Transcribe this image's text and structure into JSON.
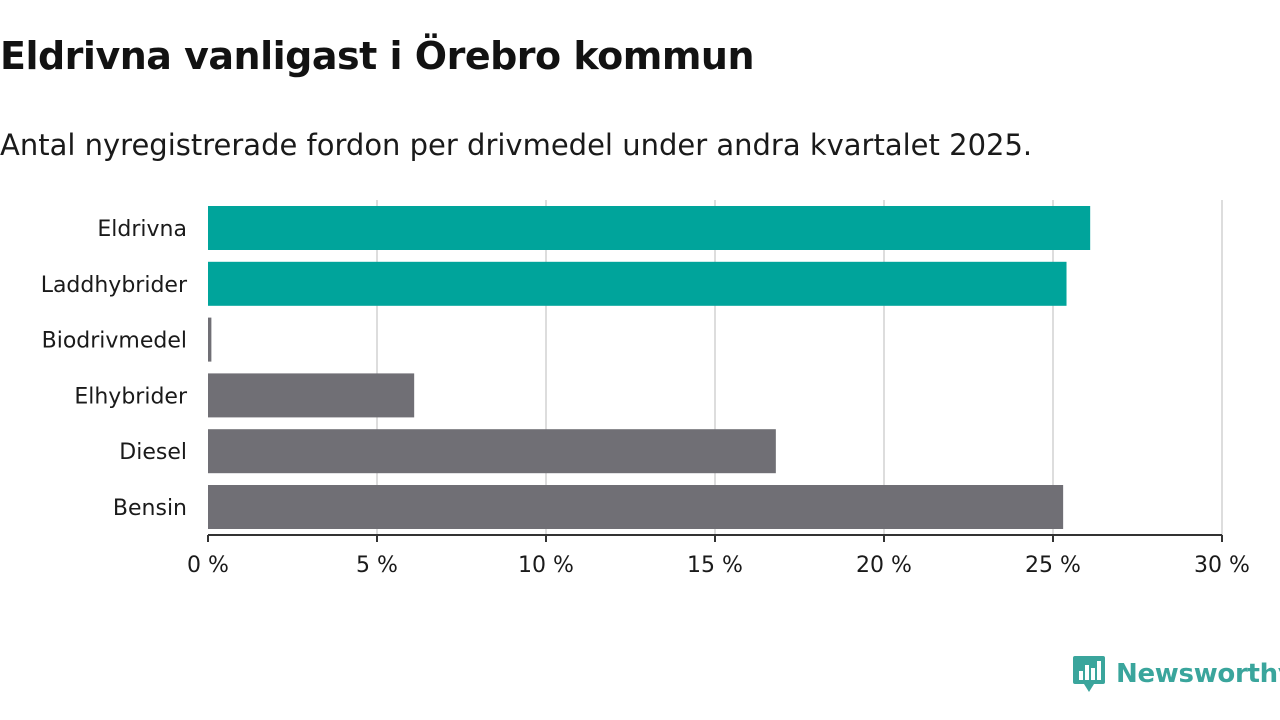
{
  "title": "Eldrivna vanligast i Örebro kommun",
  "subtitle": "Antal nyregistrerade fordon per drivmedel under andra kvartalet 2025.",
  "brand": {
    "name": "Newsworthy",
    "icon": "newsworthy-logo-icon"
  },
  "colors": {
    "highlight": "#00a49b",
    "default": "#706f75",
    "grid": "#dddddd",
    "axis": "#333333",
    "brand": "#3aa59c"
  },
  "chart_data": {
    "type": "bar",
    "orientation": "horizontal",
    "categories": [
      "Eldrivna",
      "Laddhybrider",
      "Biodrivmedel",
      "Elhybrider",
      "Diesel",
      "Bensin"
    ],
    "values": [
      26.1,
      25.4,
      0.1,
      6.1,
      16.8,
      25.3
    ],
    "highlighted": [
      true,
      true,
      false,
      false,
      false,
      false
    ],
    "xlim": [
      0,
      30
    ],
    "xticks": [
      0,
      5,
      10,
      15,
      20,
      25,
      30
    ],
    "tick_suffix": " %",
    "grid": true,
    "xlabel": "",
    "ylabel": ""
  }
}
